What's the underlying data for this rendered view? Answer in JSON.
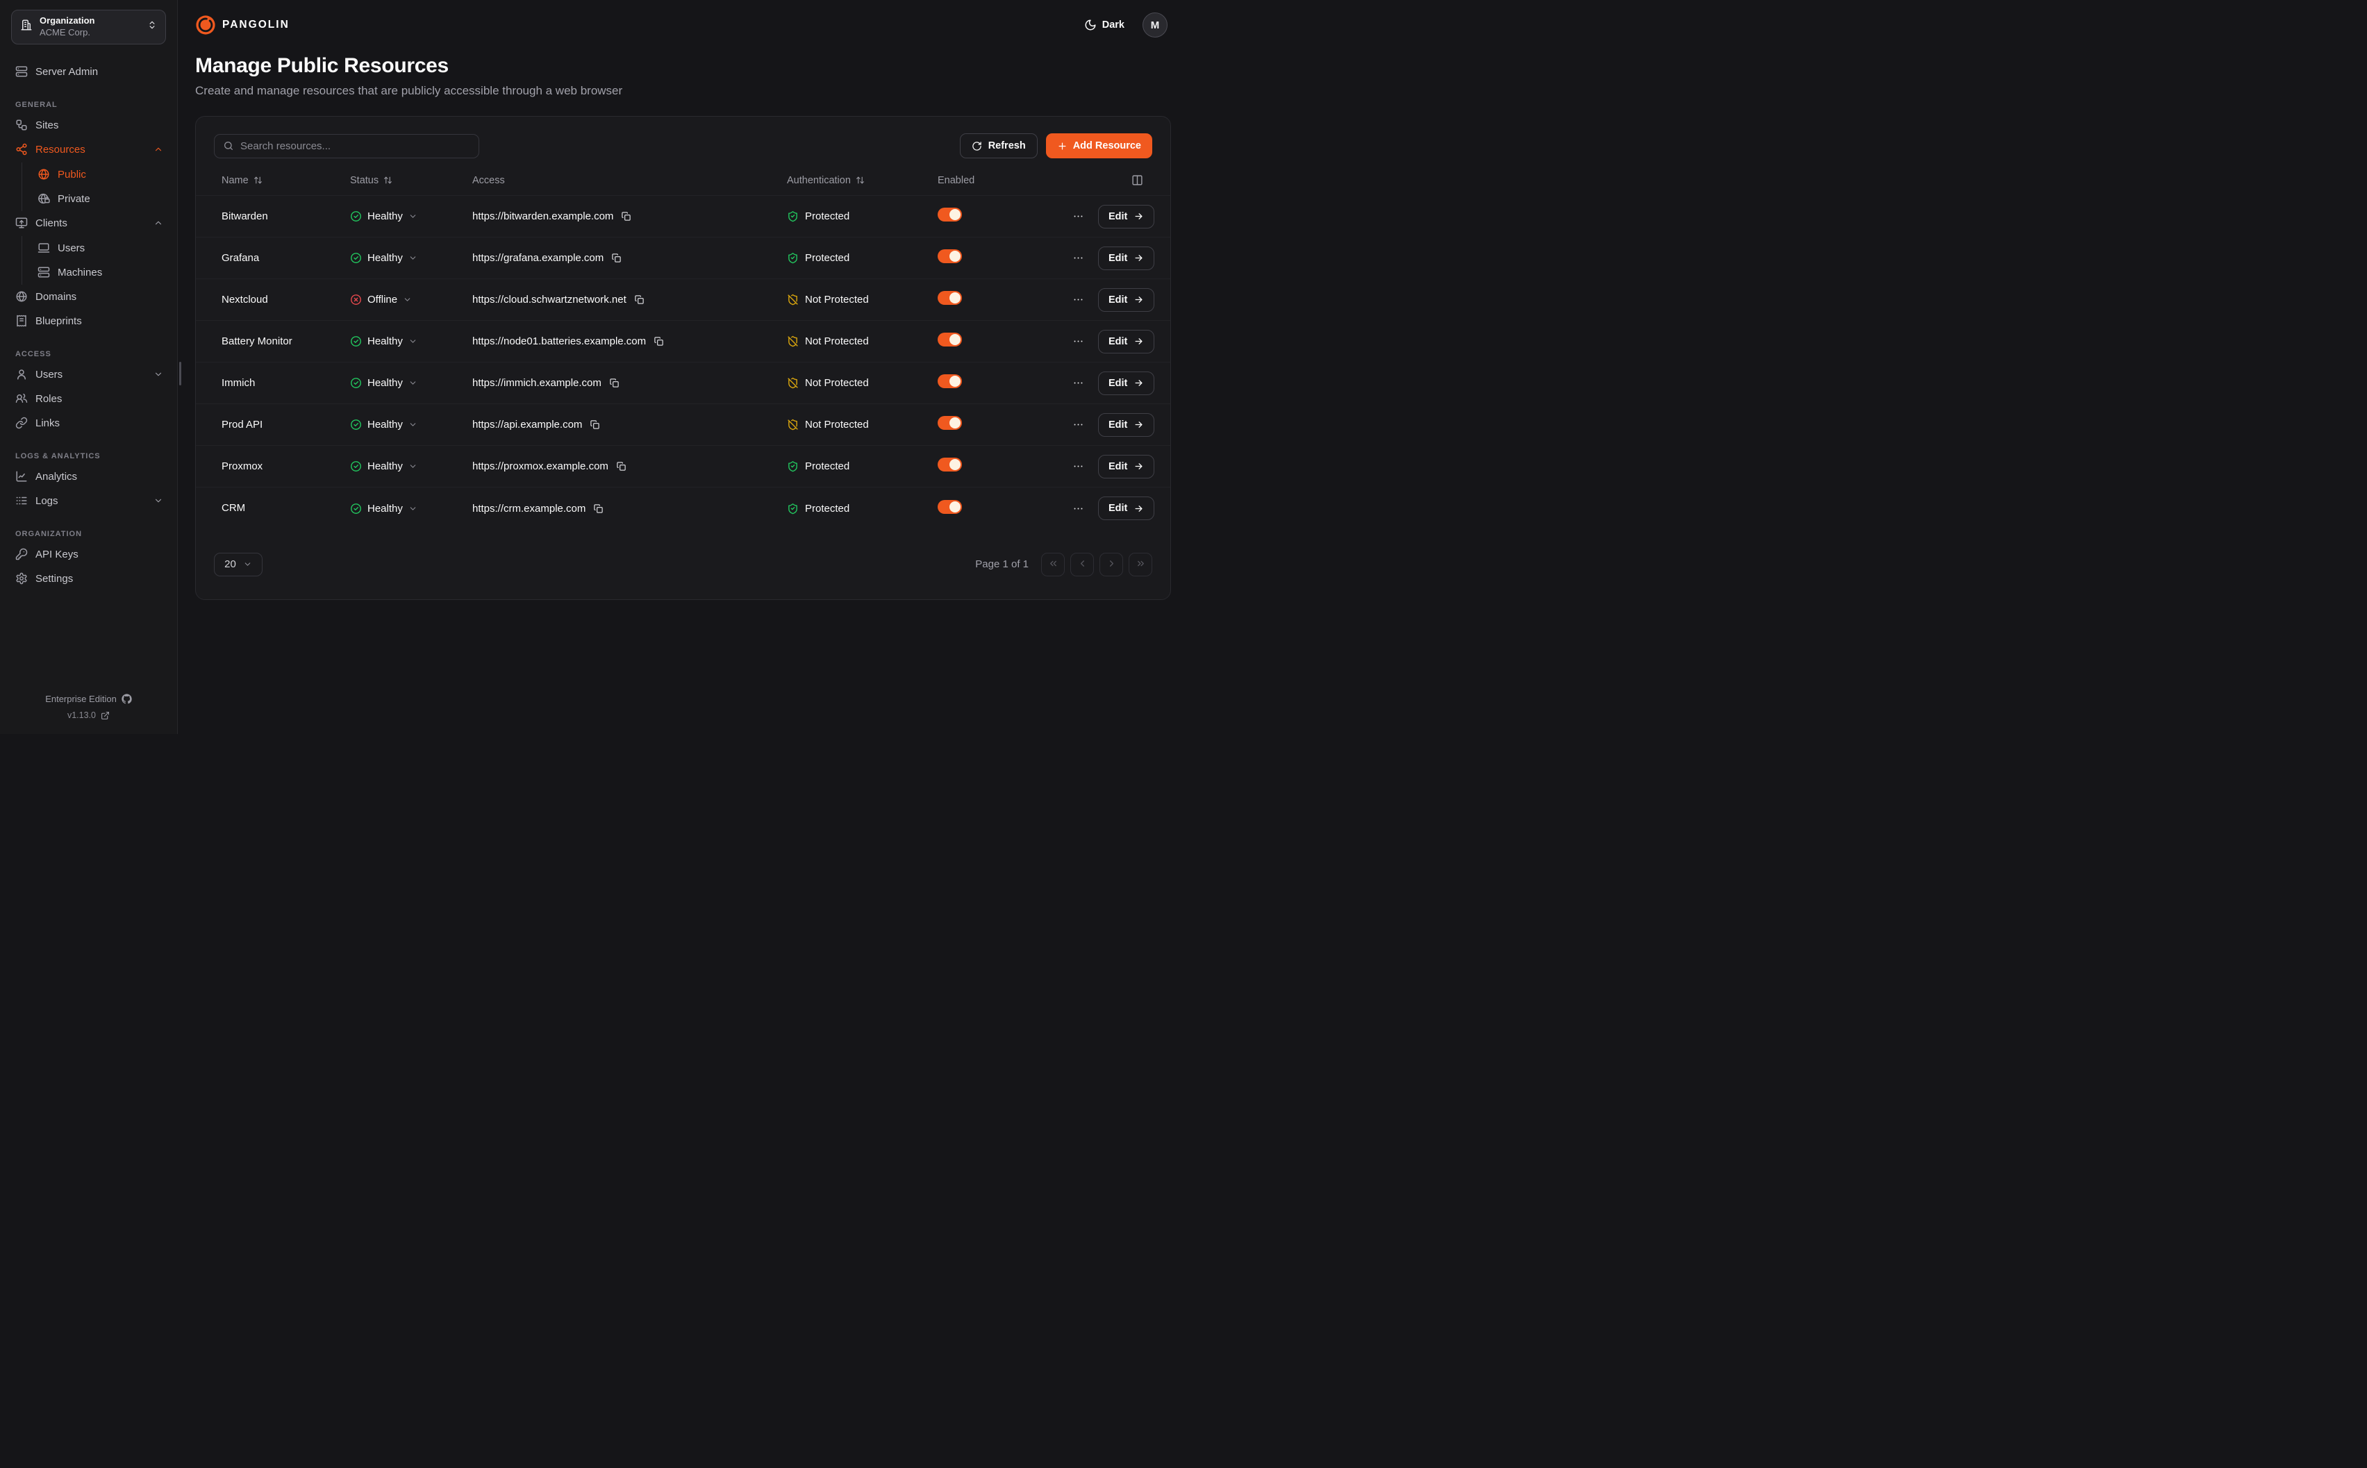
{
  "brand": {
    "name": "PANGOLIN"
  },
  "org_switcher": {
    "label": "Organization",
    "value": "ACME Corp."
  },
  "topbar": {
    "theme_label": "Dark",
    "avatar_initial": "M"
  },
  "page": {
    "title": "Manage Public Resources",
    "subtitle": "Create and manage resources that are publicly accessible through a web browser"
  },
  "toolbar": {
    "search_placeholder": "Search resources...",
    "refresh_label": "Refresh",
    "add_label": "Add Resource"
  },
  "table": {
    "columns": [
      {
        "label": "Name",
        "sortable": true
      },
      {
        "label": "Status",
        "sortable": true
      },
      {
        "label": "Access",
        "sortable": false
      },
      {
        "label": "Authentication",
        "sortable": true
      },
      {
        "label": "Enabled",
        "sortable": false
      }
    ],
    "edit_label": "Edit"
  },
  "resources": [
    {
      "name": "Bitwarden",
      "status": "Healthy",
      "status_state": "healthy",
      "url": "https://bitwarden.example.com",
      "auth": "Protected",
      "auth_state": "protected",
      "enabled": true
    },
    {
      "name": "Grafana",
      "status": "Healthy",
      "status_state": "healthy",
      "url": "https://grafana.example.com",
      "auth": "Protected",
      "auth_state": "protected",
      "enabled": true
    },
    {
      "name": "Nextcloud",
      "status": "Offline",
      "status_state": "offline",
      "url": "https://cloud.schwartznetwork.net",
      "auth": "Not Protected",
      "auth_state": "not_protected",
      "enabled": true
    },
    {
      "name": "Battery Monitor",
      "status": "Healthy",
      "status_state": "healthy",
      "url": "https://node01.batteries.example.com",
      "auth": "Not Protected",
      "auth_state": "not_protected",
      "enabled": true
    },
    {
      "name": "Immich",
      "status": "Healthy",
      "status_state": "healthy",
      "url": "https://immich.example.com",
      "auth": "Not Protected",
      "auth_state": "not_protected",
      "enabled": true
    },
    {
      "name": "Prod API",
      "status": "Healthy",
      "status_state": "healthy",
      "url": "https://api.example.com",
      "auth": "Not Protected",
      "auth_state": "not_protected",
      "enabled": true
    },
    {
      "name": "Proxmox",
      "status": "Healthy",
      "status_state": "healthy",
      "url": "https://proxmox.example.com",
      "auth": "Protected",
      "auth_state": "protected",
      "enabled": true
    },
    {
      "name": "CRM",
      "status": "Healthy",
      "status_state": "healthy",
      "url": "https://crm.example.com",
      "auth": "Protected",
      "auth_state": "protected",
      "enabled": true
    }
  ],
  "pagination": {
    "page_size": "20",
    "page_label": "Page 1 of 1"
  },
  "sidebar": {
    "server_admin": {
      "label": "Server Admin",
      "icon": "server-icon"
    },
    "sections": [
      {
        "label": "GENERAL",
        "items": [
          {
            "label": "Sites",
            "icon": "sites-icon"
          },
          {
            "label": "Resources",
            "icon": "resources-icon",
            "active": true,
            "expanded": true,
            "children": [
              {
                "label": "Public",
                "icon": "globe-icon",
                "active": true
              },
              {
                "label": "Private",
                "icon": "globe-lock-icon"
              }
            ]
          },
          {
            "label": "Clients",
            "icon": "monitor-up-icon",
            "expanded": true,
            "children": [
              {
                "label": "Users",
                "icon": "laptop-icon"
              },
              {
                "label": "Machines",
                "icon": "server-icon"
              }
            ]
          },
          {
            "label": "Domains",
            "icon": "globe-icon"
          },
          {
            "label": "Blueprints",
            "icon": "receipt-icon"
          }
        ]
      },
      {
        "label": "ACCESS",
        "items": [
          {
            "label": "Users",
            "icon": "user-icon",
            "collapsed": true
          },
          {
            "label": "Roles",
            "icon": "users-icon"
          },
          {
            "label": "Links",
            "icon": "link-icon"
          }
        ]
      },
      {
        "label": "LOGS & ANALYTICS",
        "items": [
          {
            "label": "Analytics",
            "icon": "chart-icon"
          },
          {
            "label": "Logs",
            "icon": "logs-icon",
            "collapsed": true
          }
        ]
      },
      {
        "label": "ORGANIZATION",
        "items": [
          {
            "label": "API Keys",
            "icon": "key-icon"
          },
          {
            "label": "Settings",
            "icon": "gear-icon"
          }
        ]
      }
    ],
    "footer": {
      "edition": "Enterprise Edition",
      "version": "v1.13.0"
    }
  },
  "colors": {
    "accent": "#f0591f",
    "healthy": "#22c55e",
    "offline": "#e5484d",
    "protected": "#22c55e",
    "not_protected": "#d9a50e",
    "toggle_on": "#f0591f"
  }
}
